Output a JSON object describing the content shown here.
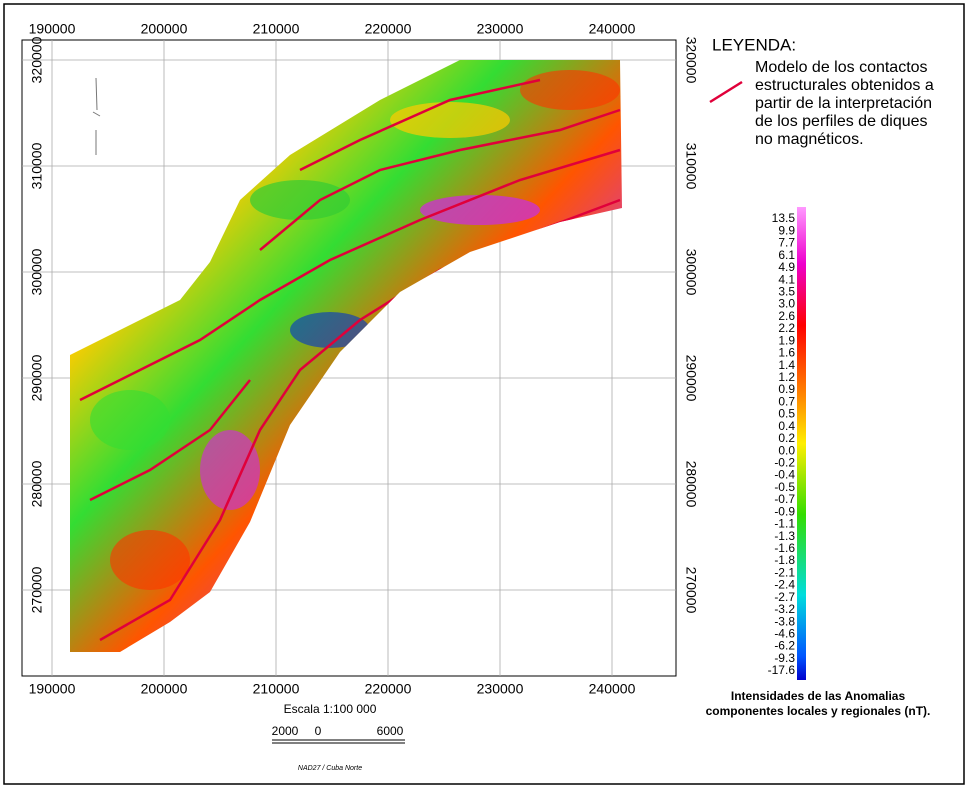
{
  "map": {
    "x_ticks_top": [
      "190000",
      "200000",
      "210000",
      "220000",
      "230000",
      "240000"
    ],
    "x_ticks_bottom": [
      "190000",
      "200000",
      "210000",
      "220000",
      "230000",
      "240000"
    ],
    "y_ticks_left": [
      "320000",
      "310000",
      "300000",
      "290000",
      "280000",
      "270000"
    ],
    "y_ticks_right": [
      "320000",
      "310000",
      "300000",
      "290000",
      "280000",
      "270000"
    ],
    "scale": "Escala 1:100 000",
    "scale_bar_labels": [
      "2000",
      "0",
      "6000"
    ],
    "projection": "NAD27 / Cuba Norte"
  },
  "legend": {
    "title": "LEYENDA:",
    "item_lines": [
      "Modelo de los contactos",
      "estructurales obtenidos a",
      "partir de la interpretación",
      "de los perfiles de diques",
      "no magnéticos."
    ]
  },
  "colorbar": {
    "labels": [
      "13.5",
      "9.9",
      "7.7",
      "6.1",
      "4.9",
      "4.1",
      "3.5",
      "3.0",
      "2.6",
      "2.2",
      "1.9",
      "1.6",
      "1.4",
      "1.2",
      "0.9",
      "0.7",
      "0.5",
      "0.4",
      "0.2",
      "0.0",
      "-0.2",
      "-0.4",
      "-0.5",
      "-0.7",
      "-0.9",
      "-1.1",
      "-1.3",
      "-1.6",
      "-1.8",
      "-2.1",
      "-2.4",
      "-2.7",
      "-3.2",
      "-3.8",
      "-4.6",
      "-6.2",
      "-9.3",
      "-17.6"
    ],
    "title_lines": [
      "Intensidades de las Anomalias",
      "componentes locales y regionales (nT)."
    ]
  }
}
